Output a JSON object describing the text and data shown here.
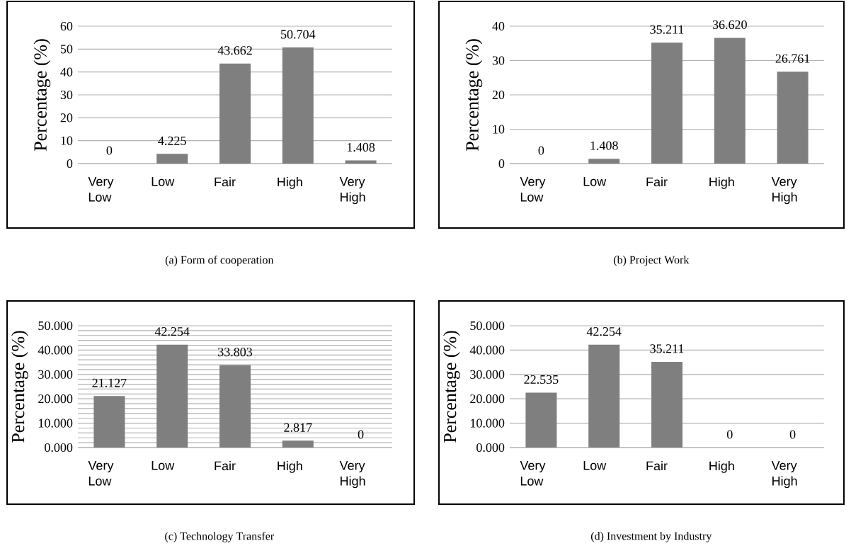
{
  "chart_data": [
    {
      "type": "bar",
      "title": "(a) Form of cooperation",
      "ylabel": "Percentage (%)",
      "categories": [
        "Very Low",
        "Low",
        "Fair",
        "High",
        "Very High"
      ],
      "values": [
        0,
        4.225,
        43.662,
        50.704,
        1.408
      ],
      "value_labels": [
        "0",
        "4.225",
        "43.662",
        "50.704",
        "1.408"
      ],
      "color": "#7f7f7f",
      "ylim": [
        0,
        60
      ],
      "yticks": [
        0,
        10,
        20,
        30,
        40,
        50,
        60
      ],
      "grid": "y"
    },
    {
      "type": "bar",
      "title": "(b) Project Work",
      "ylabel": "Percentage (%)",
      "categories": [
        "Very Low",
        "Low",
        "Fair",
        "High",
        "Very High"
      ],
      "values": [
        0,
        1.408,
        35.211,
        36.62,
        26.761
      ],
      "value_labels": [
        "0",
        "1.408",
        "35.211",
        "36.620",
        "26.761"
      ],
      "color": "#7f7f7f",
      "ylim": [
        0,
        40
      ],
      "yticks": [
        0,
        10,
        20,
        30,
        40
      ],
      "grid": "y"
    },
    {
      "type": "bar",
      "title": "(c) Technology Transfer",
      "ylabel": "Percentage (%)",
      "categories": [
        "Very Low",
        "Low",
        "Fair",
        "High",
        "Very High"
      ],
      "values": [
        21.127,
        42.254,
        33.803,
        2.817,
        0
      ],
      "value_labels": [
        "21.127",
        "42.254",
        "33.803",
        "2.817",
        "0"
      ],
      "color": "#7f7f7f",
      "ylim": [
        0,
        50
      ],
      "yticks": [
        {
          "value": 0,
          "label": "0.000"
        },
        {
          "value": 2,
          "label": null
        },
        {
          "value": 4,
          "label": null
        },
        {
          "value": 6,
          "label": null
        },
        {
          "value": 8,
          "label": null
        },
        {
          "value": 10,
          "label": "10.000"
        },
        {
          "value": 12,
          "label": null
        },
        {
          "value": 14,
          "label": null
        },
        {
          "value": 16,
          "label": null
        },
        {
          "value": 18,
          "label": null
        },
        {
          "value": 20,
          "label": "20.000"
        },
        {
          "value": 22,
          "label": null
        },
        {
          "value": 24,
          "label": null
        },
        {
          "value": 26,
          "label": null
        },
        {
          "value": 28,
          "label": null
        },
        {
          "value": 30,
          "label": "30.000"
        },
        {
          "value": 32,
          "label": null
        },
        {
          "value": 34,
          "label": null
        },
        {
          "value": 36,
          "label": null
        },
        {
          "value": 38,
          "label": null
        },
        {
          "value": 40,
          "label": "40.000"
        },
        {
          "value": 42,
          "label": null
        },
        {
          "value": 44,
          "label": null
        },
        {
          "value": 46,
          "label": null
        },
        {
          "value": 48,
          "label": null
        },
        {
          "value": 50,
          "label": "50.000"
        }
      ],
      "grid": "y"
    },
    {
      "type": "bar",
      "title": "(d) Investment by Industry",
      "ylabel": "Percentage (%)",
      "categories": [
        "Very Low",
        "Low",
        "Fair",
        "High",
        "Very High"
      ],
      "values": [
        22.535,
        42.254,
        35.211,
        0,
        0
      ],
      "value_labels": [
        "22.535",
        "42.254",
        "35.211",
        "0",
        "0"
      ],
      "color": "#7f7f7f",
      "ylim": [
        0,
        50
      ],
      "yticks": [
        {
          "value": 0,
          "label": "0.000"
        },
        {
          "value": 10,
          "label": "10.000"
        },
        {
          "value": 20,
          "label": "20.000"
        },
        {
          "value": 30,
          "label": "30.000"
        },
        {
          "value": 40,
          "label": "40.000"
        },
        {
          "value": 50,
          "label": "50.000"
        }
      ],
      "grid": "y"
    }
  ]
}
